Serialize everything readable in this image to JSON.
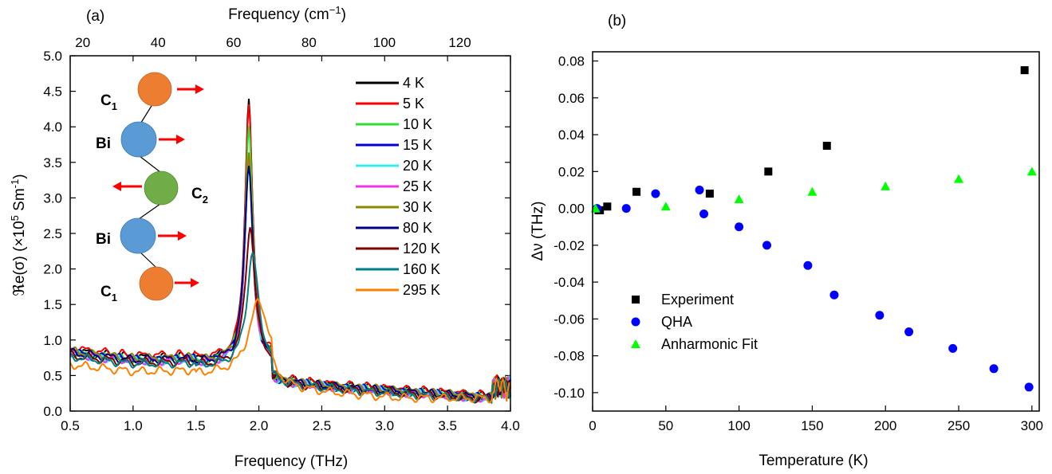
{
  "chart_data": [
    {
      "type": "line",
      "panel_label": "(a)",
      "xlabel": "Frequency (THz)",
      "xlabel_top": "Frequency (cm",
      "xlabel_top_sup": "−1",
      "xlabel_top_end": ")",
      "ylabel_main": "ℜe(σ) (×10",
      "ylabel_sup": "5",
      "ylabel_mid": " Sm",
      "ylabel_sup2": "-1",
      "ylabel_end": ")",
      "xlim": [
        0.5,
        4.0
      ],
      "ylim": [
        0.0,
        5.0
      ],
      "xticks": [
        "0.5",
        "1.0",
        "1.5",
        "2.0",
        "2.5",
        "3.0",
        "3.5",
        "4.0"
      ],
      "yticks": [
        "0.0",
        "0.5",
        "1.0",
        "1.5",
        "2.0",
        "2.5",
        "3.0",
        "3.5",
        "4.0",
        "4.5",
        "5.0"
      ],
      "top_ticks_cm": [
        "20",
        "40",
        "60",
        "80",
        "100",
        "120"
      ],
      "series": [
        {
          "name": "4 K",
          "color": "#000000",
          "base": 0.75,
          "peak_x": 1.92,
          "peak_y": 4.45,
          "width": 0.035
        },
        {
          "name": "5 K",
          "color": "#ff0000",
          "base": 0.78,
          "peak_x": 1.92,
          "peak_y": 4.35,
          "width": 0.035
        },
        {
          "name": "10 K",
          "color": "#33dd33",
          "base": 0.72,
          "peak_x": 1.92,
          "peak_y": 4.0,
          "width": 0.036
        },
        {
          "name": "15 K",
          "color": "#0000dd",
          "base": 0.72,
          "peak_x": 1.92,
          "peak_y": 3.5,
          "width": 0.037
        },
        {
          "name": "20 K",
          "color": "#33eeee",
          "base": 0.7,
          "peak_x": 1.92,
          "peak_y": 3.45,
          "width": 0.038
        },
        {
          "name": "25 K",
          "color": "#ee33ee",
          "base": 0.7,
          "peak_x": 1.92,
          "peak_y": 3.55,
          "width": 0.038
        },
        {
          "name": "30 K",
          "color": "#8a8a00",
          "base": 0.74,
          "peak_x": 1.92,
          "peak_y": 3.65,
          "width": 0.038
        },
        {
          "name": "80 K",
          "color": "#000080",
          "base": 0.72,
          "peak_x": 1.92,
          "peak_y": 3.5,
          "width": 0.04
        },
        {
          "name": "120 K",
          "color": "#800000",
          "base": 0.68,
          "peak_x": 1.93,
          "peak_y": 2.62,
          "width": 0.045
        },
        {
          "name": "160 K",
          "color": "#008080",
          "base": 0.66,
          "peak_x": 1.95,
          "peak_y": 2.22,
          "width": 0.055
        },
        {
          "name": "295 K",
          "color": "#ff8000",
          "base": 0.55,
          "peak_x": 2.0,
          "peak_y": 1.55,
          "width": 0.09
        }
      ],
      "inset_labels": {
        "c1_top": "C",
        "c1_top_sub": "1",
        "bi_top": "Bi",
        "c2": "C",
        "c2_sub": "2",
        "bi_bottom": "Bi",
        "c1_bottom": "C",
        "c1_bottom_sub": "1"
      },
      "inset_colors": {
        "c1": "#ed7d31",
        "bi": "#5b9bd5",
        "c2": "#70ad47",
        "arrow": "#ff0000"
      }
    },
    {
      "type": "scatter",
      "panel_label": "(b)",
      "xlabel": "Temperature (K)",
      "ylabel": "Δν (THz)",
      "xlim": [
        0,
        305
      ],
      "ylim": [
        -0.11,
        0.085
      ],
      "xticks": [
        "0",
        "50",
        "100",
        "150",
        "200",
        "250",
        "300"
      ],
      "yticks": [
        "0.08",
        "0.06",
        "0.04",
        "0.02",
        "0.00",
        "-0.02",
        "-0.04",
        "-0.06",
        "-0.08",
        "-0.10"
      ],
      "series": [
        {
          "name": "Experiment",
          "marker": "square",
          "color": "#000000",
          "x": [
            4,
            5,
            10,
            30,
            80,
            120,
            160,
            295
          ],
          "y": [
            -0.001,
            -0.001,
            0.001,
            0.009,
            0.008,
            0.02,
            0.034,
            0.075
          ]
        },
        {
          "name": "QHA",
          "marker": "circle",
          "color": "#0000ff",
          "x": [
            3,
            23,
            43,
            73,
            76,
            100,
            119,
            147,
            165,
            196,
            216,
            246,
            274,
            298
          ],
          "y": [
            0.0,
            0.0,
            0.008,
            0.01,
            -0.003,
            -0.01,
            -0.02,
            -0.031,
            -0.047,
            -0.058,
            -0.067,
            -0.076,
            -0.087,
            -0.097
          ]
        },
        {
          "name": "Anharmonic Fit",
          "marker": "triangle",
          "color": "#00ff00",
          "x": [
            2,
            50,
            100,
            150,
            200,
            250,
            300
          ],
          "y": [
            0.0,
            0.001,
            0.005,
            0.009,
            0.012,
            0.016,
            0.02
          ]
        }
      ]
    }
  ]
}
